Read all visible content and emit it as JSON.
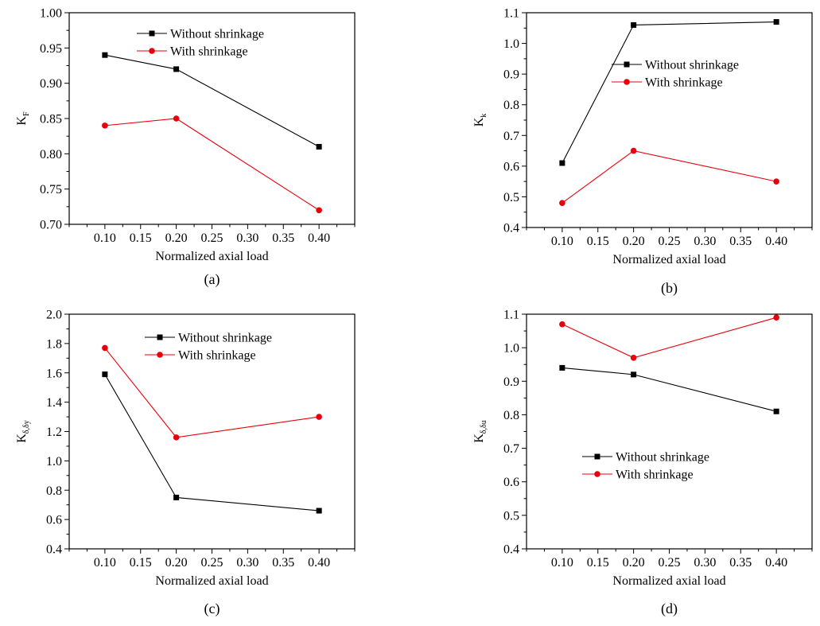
{
  "colors": {
    "without": "#000000",
    "with": "#e8000b",
    "frame": "#000000"
  },
  "chart_data": [
    {
      "type": "line",
      "caption": "(a)",
      "ylabel_main": "K",
      "ylabel_sub": "F",
      "xlabel": "Normalized axial load",
      "x": [
        0.1,
        0.2,
        0.4
      ],
      "xlim": [
        0.05,
        0.45
      ],
      "xticks": [
        "0.10",
        "0.15",
        "0.20",
        "0.25",
        "0.30",
        "0.35",
        "0.40"
      ],
      "ylim": [
        0.7,
        1.0
      ],
      "yticks": [
        "0.70",
        "0.75",
        "0.80",
        "0.85",
        "0.90",
        "0.95",
        "1.00"
      ],
      "legend_position": "top-right",
      "series": [
        {
          "name": "Without shrinkage",
          "marker": "square",
          "color": "#000000",
          "values": [
            0.94,
            0.92,
            0.81
          ]
        },
        {
          "name": "With shrinkage",
          "marker": "circle",
          "color": "#e8000b",
          "values": [
            0.84,
            0.85,
            0.72
          ]
        }
      ]
    },
    {
      "type": "line",
      "caption": "(b)",
      "ylabel_main": "K",
      "ylabel_sub": "k",
      "xlabel": "Normalized axial load",
      "x": [
        0.1,
        0.2,
        0.4
      ],
      "xlim": [
        0.05,
        0.45
      ],
      "xticks": [
        "0.10",
        "0.15",
        "0.20",
        "0.25",
        "0.30",
        "0.35",
        "0.40"
      ],
      "ylim": [
        0.4,
        1.1
      ],
      "yticks": [
        "0.4",
        "0.5",
        "0.6",
        "0.7",
        "0.8",
        "0.9",
        "1.0",
        "1.1"
      ],
      "legend_position": "top-right",
      "series": [
        {
          "name": "Without shrinkage",
          "marker": "square",
          "color": "#000000",
          "values": [
            0.61,
            1.06,
            1.07
          ]
        },
        {
          "name": "With shrinkage",
          "marker": "circle",
          "color": "#e8000b",
          "values": [
            0.48,
            0.65,
            0.55
          ]
        }
      ]
    },
    {
      "type": "line",
      "caption": "(c)",
      "ylabel_main": "K",
      "ylabel_sub": "δ,δy",
      "xlabel": "Normalized axial load",
      "x": [
        0.1,
        0.2,
        0.4
      ],
      "xlim": [
        0.05,
        0.45
      ],
      "xticks": [
        "0.10",
        "0.15",
        "0.20",
        "0.25",
        "0.30",
        "0.35",
        "0.40"
      ],
      "ylim": [
        0.4,
        2.0
      ],
      "yticks": [
        "0.4",
        "0.6",
        "0.8",
        "1.0",
        "1.2",
        "1.4",
        "1.6",
        "1.8",
        "2.0"
      ],
      "legend_position": "top-right",
      "series": [
        {
          "name": "Without shrinkage",
          "marker": "square",
          "color": "#000000",
          "values": [
            1.59,
            0.75,
            0.66
          ]
        },
        {
          "name": "With shrinkage",
          "marker": "circle",
          "color": "#e8000b",
          "values": [
            1.77,
            1.16,
            1.3
          ]
        }
      ]
    },
    {
      "type": "line",
      "caption": "(d)",
      "ylabel_main": "K",
      "ylabel_sub": "δ,δu",
      "xlabel": "Normalized axial load",
      "x": [
        0.1,
        0.2,
        0.4
      ],
      "xlim": [
        0.05,
        0.45
      ],
      "xticks": [
        "0.10",
        "0.15",
        "0.20",
        "0.25",
        "0.30",
        "0.35",
        "0.40"
      ],
      "ylim": [
        0.4,
        1.1
      ],
      "yticks": [
        "0.4",
        "0.5",
        "0.6",
        "0.7",
        "0.8",
        "0.9",
        "1.0",
        "1.1"
      ],
      "legend_position": "center-right",
      "series": [
        {
          "name": "Without shrinkage",
          "marker": "square",
          "color": "#000000",
          "values": [
            0.94,
            0.92,
            0.81
          ]
        },
        {
          "name": "With shrinkage",
          "marker": "circle",
          "color": "#e8000b",
          "values": [
            1.07,
            0.97,
            1.09
          ]
        }
      ]
    }
  ]
}
